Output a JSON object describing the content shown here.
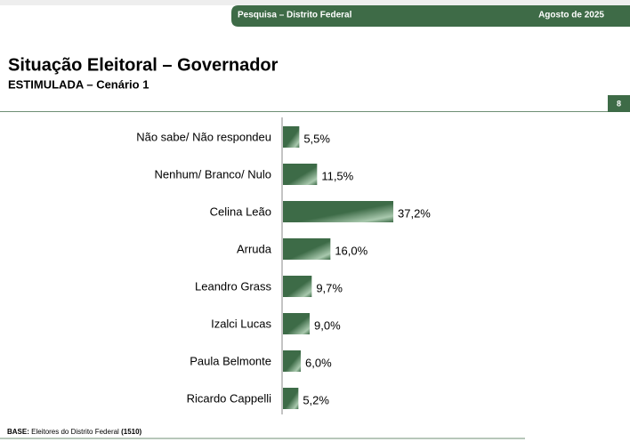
{
  "header": {
    "left": "Pesquisa – Distrito Federal",
    "right": "Agosto de 2025"
  },
  "page_number": "8",
  "footer": {
    "label": "BASE:",
    "text": "Eleitores do Distrito Federal",
    "count": "(1510)"
  },
  "chart_data": {
    "type": "bar",
    "orientation": "horizontal",
    "title": "Situação Eleitoral – Governador",
    "subtitle": "ESTIMULADA – Cenário 1",
    "categories": [
      "Não sabe/ Não respondeu",
      "Nenhum/ Branco/ Nulo",
      "Celina Leão",
      "Arruda",
      "Leandro Grass",
      "Izalci Lucas",
      "Paula Belmonte",
      "Ricardo Cappelli"
    ],
    "values": [
      5.5,
      11.5,
      37.2,
      16.0,
      9.7,
      9.0,
      6.0,
      5.2
    ],
    "value_labels": [
      "5,5%",
      "11,5%",
      "37,2%",
      "16,0%",
      "9,7%",
      "9,0%",
      "6,0%",
      "5,2%"
    ],
    "color": "#3d6b47"
  }
}
